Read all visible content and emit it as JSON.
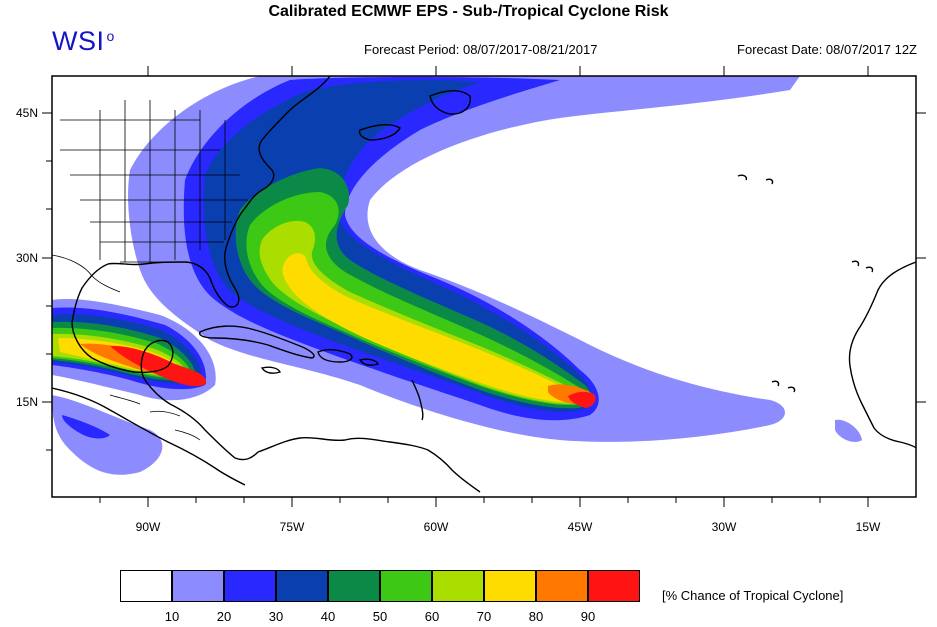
{
  "header": {
    "title": "Calibrated ECMWF EPS - Sub-/Tropical Cyclone Risk",
    "logo": "WSI",
    "logo_mark": "o",
    "forecast_period": "Forecast Period: 08/07/2017-08/21/2017",
    "forecast_date": "Forecast Date: 08/07/2017 12Z"
  },
  "map": {
    "lat_labels": [
      "45N",
      "30N",
      "15N"
    ],
    "lon_labels": [
      "90W",
      "75W",
      "60W",
      "45W",
      "30W",
      "15W"
    ],
    "colors": {
      "p10": "#8c8cff",
      "p20": "#2828ff",
      "p30": "#0a3fb0",
      "p40": "#0a8a46",
      "p50": "#3cc814",
      "p60": "#aadd00",
      "p70": "#ffdc00",
      "p80": "#ff7800",
      "p90": "#ff1414"
    }
  },
  "legend": {
    "colors": [
      "#ffffff",
      "#8c8cff",
      "#2828ff",
      "#0a3fb0",
      "#0a8a46",
      "#3cc814",
      "#aadd00",
      "#ffdc00",
      "#ff7800",
      "#ff1414"
    ],
    "labels": [
      "10",
      "20",
      "30",
      "40",
      "50",
      "60",
      "70",
      "80",
      "90"
    ],
    "caption": "[% Chance of Tropical Cyclone]"
  }
}
